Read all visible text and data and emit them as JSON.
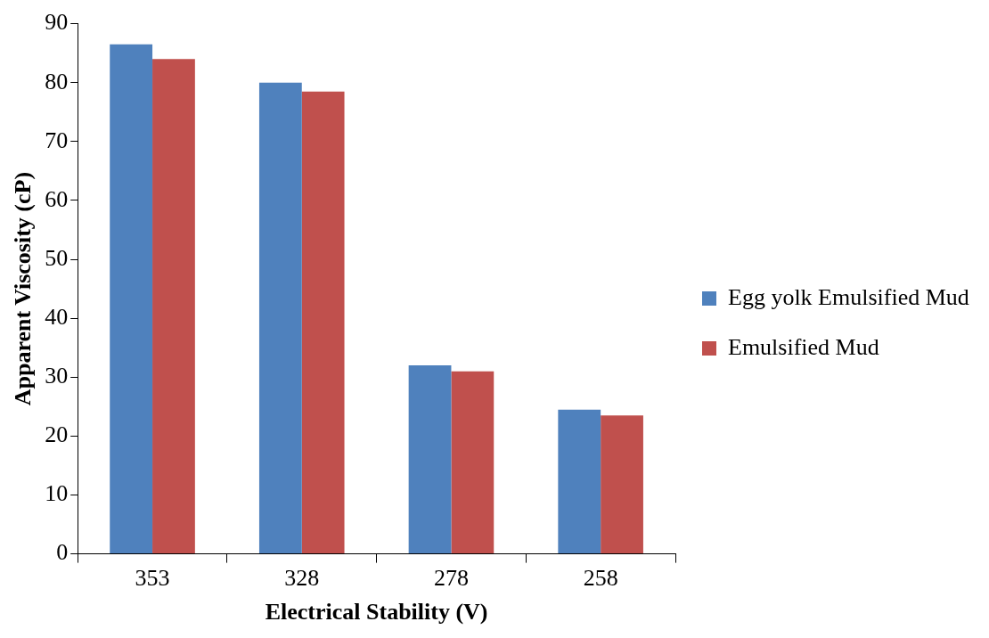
{
  "chart_data": {
    "type": "bar",
    "xlabel": "Electrical Stability (V)",
    "ylabel": "Apparent Viscosity (cP)",
    "categories": [
      "353",
      "328",
      "278",
      "258"
    ],
    "series": [
      {
        "name": "Egg yolk Emulsified Mud",
        "color": "#4f81bd",
        "values": [
          86.5,
          80,
          32,
          24.5
        ]
      },
      {
        "name": "Emulsified Mud",
        "color": "#c0504d",
        "values": [
          84,
          78.5,
          31,
          23.5
        ]
      }
    ],
    "ylim": [
      0,
      90
    ],
    "yticks": [
      0,
      10,
      20,
      30,
      40,
      50,
      60,
      70,
      80,
      90
    ],
    "grid": false,
    "legend": "right"
  }
}
